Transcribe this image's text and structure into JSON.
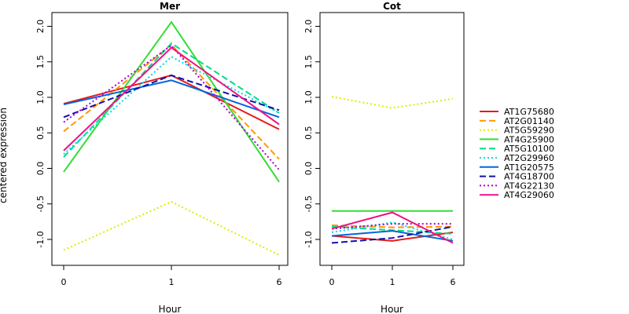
{
  "chart_data": {
    "type": "line",
    "ylabel": "centered expression",
    "xlabel": "Hour",
    "x": [
      "0",
      "1",
      "6"
    ],
    "ylim": [
      -1.35,
      2.2
    ],
    "yticks": [
      "-1.0",
      "-0.5",
      "0.0",
      "0.5",
      "1.0",
      "1.5",
      "2.0"
    ],
    "grid": false,
    "legend_position": "right",
    "panels": [
      {
        "title": "Mer",
        "series": [
          {
            "name": "AT1G75680",
            "color": "#e41a1c",
            "dash": "solid",
            "values": [
              0.91,
              1.31,
              0.55
            ]
          },
          {
            "name": "AT2G01140",
            "color": "#ff9900",
            "dash": "dashed",
            "values": [
              0.52,
              1.74,
              0.13
            ]
          },
          {
            "name": "AT5G59290",
            "color": "#ddee00",
            "dash": "dotted",
            "values": [
              -1.15,
              -0.47,
              -1.22
            ]
          },
          {
            "name": "AT4G25900",
            "color": "#33dd33",
            "dash": "solid",
            "values": [
              -0.05,
              2.06,
              -0.19
            ]
          },
          {
            "name": "AT5G10100",
            "color": "#00dd88",
            "dash": "dashed",
            "values": [
              0.16,
              1.76,
              0.78
            ]
          },
          {
            "name": "AT2G29960",
            "color": "#00dddd",
            "dash": "dotted",
            "values": [
              0.2,
              1.57,
              0.78
            ]
          },
          {
            "name": "AT1G20575",
            "color": "#0066dd",
            "dash": "solid",
            "values": [
              0.9,
              1.24,
              0.72
            ]
          },
          {
            "name": "AT4G18700",
            "color": "#1111aa",
            "dash": "dashed",
            "values": [
              0.72,
              1.31,
              0.82
            ]
          },
          {
            "name": "AT4G22130",
            "color": "#aa00dd",
            "dash": "dotted",
            "values": [
              0.65,
              1.73,
              -0.02
            ]
          },
          {
            "name": "AT4G29060",
            "color": "#ee1188",
            "dash": "solid",
            "values": [
              0.25,
              1.7,
              0.62
            ]
          }
        ]
      },
      {
        "title": "Cot",
        "series": [
          {
            "name": "AT1G75680",
            "color": "#e41a1c",
            "dash": "solid",
            "values": [
              -0.95,
              -1.02,
              -0.9
            ]
          },
          {
            "name": "AT2G01140",
            "color": "#ff9900",
            "dash": "dashed",
            "values": [
              -0.8,
              -0.83,
              -0.82
            ]
          },
          {
            "name": "AT5G59290",
            "color": "#ddee00",
            "dash": "dotted",
            "values": [
              1.01,
              0.85,
              0.98
            ]
          },
          {
            "name": "AT4G25900",
            "color": "#33dd33",
            "dash": "solid",
            "values": [
              -0.6,
              -0.6,
              -0.6
            ]
          },
          {
            "name": "AT5G10100",
            "color": "#00dd88",
            "dash": "dashed",
            "values": [
              -0.82,
              -0.87,
              -0.92
            ]
          },
          {
            "name": "AT2G29960",
            "color": "#00dddd",
            "dash": "dotted",
            "values": [
              -0.9,
              -0.76,
              -1.0
            ]
          },
          {
            "name": "AT1G20575",
            "color": "#0066dd",
            "dash": "solid",
            "values": [
              -0.95,
              -0.88,
              -1.02
            ]
          },
          {
            "name": "AT4G18700",
            "color": "#1111aa",
            "dash": "dashed",
            "values": [
              -1.05,
              -0.98,
              -0.82
            ]
          },
          {
            "name": "AT4G22130",
            "color": "#aa00dd",
            "dash": "dotted",
            "values": [
              -0.85,
              -0.78,
              -0.78
            ]
          },
          {
            "name": "AT4G29060",
            "color": "#ee1188",
            "dash": "solid",
            "values": [
              -0.85,
              -0.62,
              -1.05
            ]
          }
        ]
      }
    ]
  }
}
